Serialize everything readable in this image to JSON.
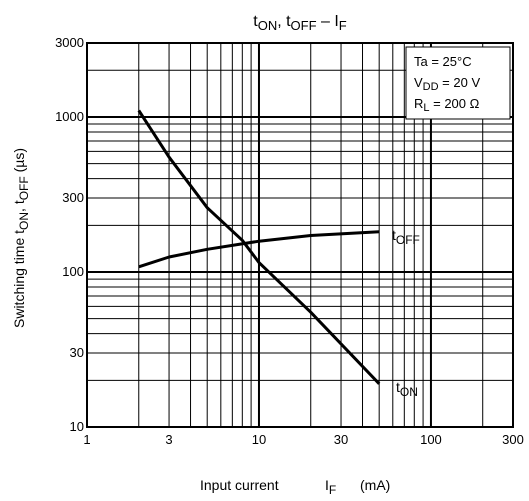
{
  "chart_data": {
    "type": "line",
    "title": {
      "main": "t",
      "sub1": "ON",
      "sep1": ", t",
      "sub2": "OFF",
      "sep2": " – I",
      "sub3": "F"
    },
    "xlabel": {
      "text": "Input current",
      "var": "I",
      "sub": "F",
      "unit": "(mA)"
    },
    "ylabel": {
      "text": "Switching time",
      "v1": "t",
      "s1": "ON",
      "sep": ", t",
      "s2": "OFF",
      "unit": "(µs)"
    },
    "xscale": "log",
    "yscale": "log",
    "xlim": [
      1,
      300
    ],
    "ylim": [
      10,
      3000
    ],
    "x_ticks": [
      {
        "value": 1,
        "label": "1"
      },
      {
        "value": 3,
        "label": "3"
      },
      {
        "value": 10,
        "label": "10"
      },
      {
        "value": 30,
        "label": "30"
      },
      {
        "value": 100,
        "label": "100"
      },
      {
        "value": 300,
        "label": "300"
      }
    ],
    "y_ticks": [
      {
        "value": 10,
        "label": "10"
      },
      {
        "value": 30,
        "label": "30"
      },
      {
        "value": 100,
        "label": "100"
      },
      {
        "value": 300,
        "label": "300"
      },
      {
        "value": 1000,
        "label": "1000"
      },
      {
        "value": 3000,
        "label": "3000"
      }
    ],
    "grid": true,
    "conditions": {
      "ta": "Ta = 25°C",
      "vdd_v": "V",
      "vdd_s": "DD",
      "vdd_val": " = 20 V",
      "rl_v": "R",
      "rl_s": "L",
      "rl_val": " = 200 Ω"
    },
    "series": [
      {
        "name": "ON",
        "x": [
          2,
          3,
          5,
          8,
          10,
          20,
          50
        ],
        "y": [
          1100,
          550,
          260,
          160,
          115,
          55,
          19
        ]
      },
      {
        "name": "OFF",
        "x": [
          2,
          3,
          5,
          10,
          20,
          50
        ],
        "y": [
          108,
          125,
          140,
          158,
          172,
          182
        ]
      }
    ],
    "line_color": "#000000"
  }
}
